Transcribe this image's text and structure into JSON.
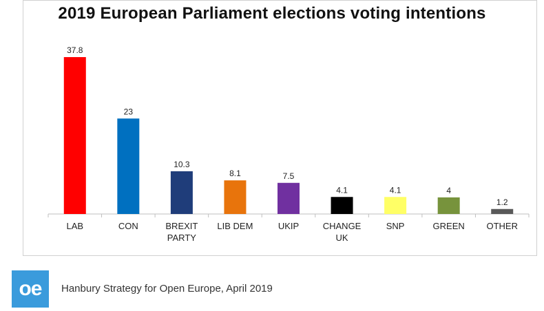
{
  "chart_data": {
    "type": "bar",
    "title": "2019 European Parliament elections voting intentions",
    "categories": [
      "LAB",
      "CON",
      "BREXIT PARTY",
      "LIB DEM",
      "UKIP",
      "CHANGE UK",
      "SNP",
      "GREEN",
      "OTHER"
    ],
    "category_lines": [
      [
        "LAB"
      ],
      [
        "CON"
      ],
      [
        "BREXIT",
        "PARTY"
      ],
      [
        "LIB DEM"
      ],
      [
        "UKIP"
      ],
      [
        "CHANGE",
        "UK"
      ],
      [
        "SNP"
      ],
      [
        "GREEN"
      ],
      [
        "OTHER"
      ]
    ],
    "values": [
      37.8,
      23,
      10.3,
      8.1,
      7.5,
      4.1,
      4.1,
      4,
      1.2
    ],
    "value_labels": [
      "37.8",
      "23",
      "10.3",
      "8.1",
      "7.5",
      "4.1",
      "4.1",
      "4",
      "1.2"
    ],
    "colors": [
      "#ff0000",
      "#0070c0",
      "#1f3d7a",
      "#e8740c",
      "#7030a0",
      "#000000",
      "#ffff66",
      "#77933c",
      "#595959"
    ],
    "xlabel": "",
    "ylabel": "",
    "ylim": [
      0,
      37.8
    ],
    "grid": false,
    "legend": "none"
  },
  "footer": {
    "logo_text": "oe",
    "source": "Hanbury Strategy for Open Europe, April 2019"
  }
}
